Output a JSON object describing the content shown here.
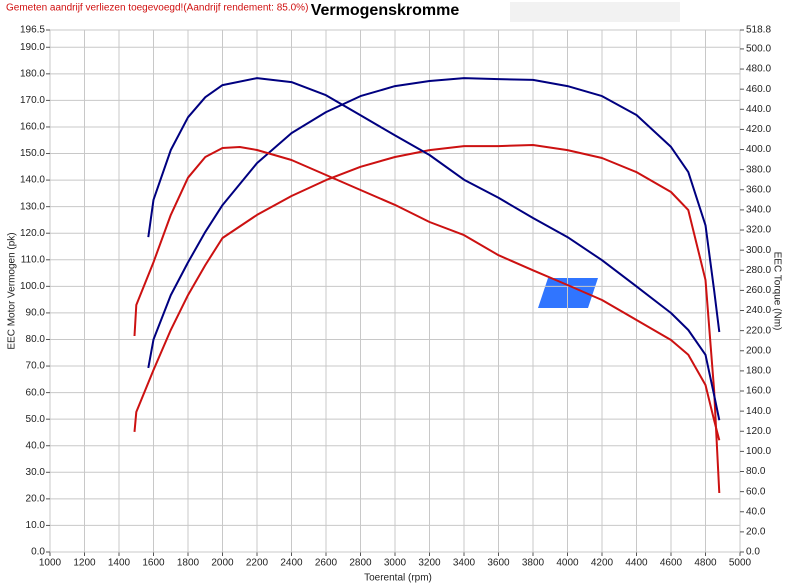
{
  "chart_data": {
    "type": "line",
    "title": "Vermogenskromme",
    "note": "Gemeten aandrijf verliezen toegevoegd!(Aandrijf rendement: 85.0%)",
    "xlabel": "Toerental (rpm)",
    "ylabel": "EEC Motor Vermogen (pk)",
    "y2label": "EEC Torque (Nm)",
    "xlim": [
      1000,
      5000
    ],
    "xticks": [
      1000,
      1200,
      1400,
      1600,
      1800,
      2000,
      2200,
      2400,
      2600,
      2800,
      3000,
      3200,
      3400,
      3600,
      3800,
      4000,
      4200,
      4400,
      4600,
      4800,
      5000
    ],
    "ylim": [
      0,
      196.5
    ],
    "yticks": [
      {
        "value": 0,
        "label": "0.0"
      },
      {
        "value": 10,
        "label": "10.0"
      },
      {
        "value": 20,
        "label": "20.0"
      },
      {
        "value": 30,
        "label": "30.0"
      },
      {
        "value": 40,
        "label": "40.0"
      },
      {
        "value": 50,
        "label": "50.0"
      },
      {
        "value": 60,
        "label": "60.0"
      },
      {
        "value": 70,
        "label": "70.0"
      },
      {
        "value": 80,
        "label": "80.0"
      },
      {
        "value": 90,
        "label": "90.0"
      },
      {
        "value": 100,
        "label": "100.0"
      },
      {
        "value": 110,
        "label": "110.0"
      },
      {
        "value": 120,
        "label": "120.0"
      },
      {
        "value": 130,
        "label": "130.0"
      },
      {
        "value": 140,
        "label": "140.0"
      },
      {
        "value": 150,
        "label": "150.0"
      },
      {
        "value": 160,
        "label": "160.0"
      },
      {
        "value": 170,
        "label": "170.0"
      },
      {
        "value": 180,
        "label": "180.0"
      },
      {
        "value": 190,
        "label": "190.0"
      },
      196.5
    ],
    "y2lim": [
      0,
      518.8
    ],
    "y2ticks": [
      {
        "value": 0,
        "label": "0.0"
      },
      {
        "value": 20,
        "label": "20.0"
      },
      {
        "value": 40,
        "label": "40.0"
      },
      {
        "value": 60,
        "label": "60.0"
      },
      {
        "value": 80,
        "label": "80.0"
      },
      {
        "value": 100,
        "label": "100.0"
      },
      {
        "value": 120,
        "label": "120.0"
      },
      {
        "value": 140,
        "label": "140.0"
      },
      {
        "value": 160,
        "label": "160.0"
      },
      {
        "value": 180,
        "label": "180.0"
      },
      {
        "value": 200,
        "label": "200.0"
      },
      {
        "value": 220,
        "label": "220.0"
      },
      {
        "value": 240,
        "label": "240.0"
      },
      {
        "value": 260,
        "label": "260.0"
      },
      {
        "value": 280,
        "label": "280.0"
      },
      {
        "value": 300,
        "label": "300.0"
      },
      {
        "value": 320,
        "label": "320.0"
      },
      {
        "value": 340,
        "label": "340.0"
      },
      {
        "value": 360,
        "label": "360.0"
      },
      {
        "value": 380,
        "label": "380.0"
      },
      {
        "value": 400,
        "label": "400.0"
      },
      {
        "value": 420,
        "label": "420.0"
      },
      {
        "value": 440,
        "label": "440.0"
      },
      {
        "value": 460,
        "label": "460.0"
      },
      {
        "value": 480,
        "label": "480.0"
      },
      {
        "value": 500,
        "label": "500.0"
      },
      518.8
    ],
    "grid": true,
    "series": [
      {
        "color": "#000080",
        "x": [
          1570,
          1600,
          1700,
          1800,
          1900,
          2000,
          2200,
          2400,
          2600,
          2800,
          3000,
          3200,
          3400,
          3600,
          3800,
          4000,
          4200,
          4400,
          4600,
          4700,
          4800,
          4850,
          4880
        ],
        "values": [
          69.3,
          80,
          96.7,
          109,
          120.5,
          130.6,
          146.4,
          157.7,
          165.6,
          171.6,
          175.4,
          177.3,
          178.4,
          178,
          177.7,
          175.4,
          171.6,
          164.5,
          152.5,
          143,
          123,
          98.6,
          82.8
        ]
      },
      {
        "color": "#cc1111",
        "x": [
          1490,
          1500,
          1600,
          1700,
          1800,
          1900,
          2000,
          2200,
          2400,
          2600,
          2800,
          3000,
          3200,
          3400,
          3600,
          3800,
          4000,
          4200,
          4400,
          4600,
          4700,
          4800,
          4850,
          4880
        ],
        "values": [
          45.2,
          52.7,
          68.5,
          83.6,
          96.7,
          108,
          118.2,
          126.9,
          134,
          140,
          145,
          148.7,
          151.3,
          152.8,
          152.8,
          153.2,
          151.3,
          148.3,
          143,
          135.5,
          128.7,
          102.4,
          61,
          22.2
        ]
      },
      {
        "color": "#000080",
        "axis": "y2",
        "x": [
          1570,
          1600,
          1700,
          1800,
          1900,
          2000,
          2200,
          2400,
          2600,
          2800,
          3000,
          3200,
          3400,
          3600,
          3800,
          4000,
          4200,
          4400,
          4600,
          4700,
          4800,
          4850,
          4880
        ],
        "values": [
          313,
          350,
          399.5,
          432,
          452,
          464,
          471,
          467,
          454,
          434,
          414,
          394.6,
          370,
          352,
          332,
          313,
          290,
          264,
          237.5,
          220.6,
          196,
          156,
          131
        ]
      },
      {
        "color": "#cc1111",
        "axis": "y2",
        "x": [
          1490,
          1500,
          1600,
          1700,
          1800,
          1900,
          2000,
          2100,
          2200,
          2400,
          2600,
          2800,
          3000,
          3200,
          3400,
          3600,
          3800,
          4000,
          4200,
          4400,
          4600,
          4700,
          4800,
          4850,
          4880
        ],
        "values": [
          214.7,
          245.5,
          288,
          335,
          372,
          392.6,
          401.5,
          402.5,
          399.5,
          389.6,
          374.7,
          359.8,
          345,
          328,
          315,
          295,
          280,
          265.4,
          250.5,
          230.6,
          210.7,
          196,
          166,
          131,
          111
        ]
      }
    ]
  }
}
